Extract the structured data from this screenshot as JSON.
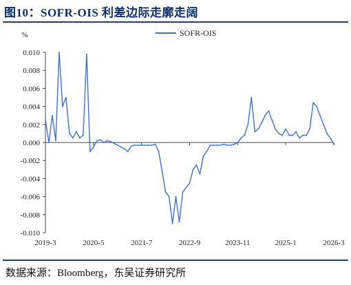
{
  "header": {
    "title": "图10：SOFR-OIS 利差边际走廓走阔"
  },
  "footer": {
    "source": "数据来源：Bloomberg，东吴证券研究所"
  },
  "colors": {
    "series": "#3a6fe0",
    "title": "#0b2f6e",
    "rule": "#1f3d7a",
    "axis": "#444444"
  },
  "chart_data": {
    "type": "line",
    "title": "",
    "ylabel": "%",
    "xlabel": "",
    "ylim": [
      -0.01,
      0.01
    ],
    "yticks": [
      0.01,
      0.008,
      0.006,
      0.004,
      0.002,
      0.0,
      -0.002,
      -0.004,
      -0.006,
      -0.008,
      -0.01
    ],
    "ytick_labels": [
      "0.010",
      "0.008",
      "0.006",
      "0.004",
      "0.002",
      "0.000",
      "-0.002",
      "-0.004",
      "-0.006",
      "-0.008",
      "-0.010"
    ],
    "xlim": [
      "2019-03",
      "2026-03"
    ],
    "xticks": [
      "2019-03",
      "2020-05",
      "2021-07",
      "2022-09",
      "2023-11",
      "2025-01",
      "2026-03"
    ],
    "xtick_labels": [
      "2019-3",
      "2020-5",
      "2021-7",
      "2022-9",
      "2023-11",
      "2025-1",
      "2026-3"
    ],
    "grid": false,
    "legend_position": "top-center",
    "series": [
      {
        "name": "SOFR-OIS",
        "x": [
          "2019-03",
          "2019-04",
          "2019-05",
          "2019-06",
          "2019-07",
          "2019-08",
          "2019-09",
          "2019-10",
          "2019-11",
          "2019-12",
          "2020-01",
          "2020-02",
          "2020-03",
          "2020-04",
          "2020-05",
          "2020-06",
          "2020-07",
          "2020-08",
          "2020-09",
          "2020-10",
          "2020-11",
          "2020-12",
          "2021-01",
          "2021-02",
          "2021-03",
          "2021-04",
          "2021-05",
          "2021-06",
          "2021-07",
          "2021-08",
          "2021-09",
          "2021-10",
          "2021-11",
          "2021-12",
          "2022-01",
          "2022-02",
          "2022-03",
          "2022-04",
          "2022-05",
          "2022-06",
          "2022-07",
          "2022-08",
          "2022-09",
          "2022-10",
          "2022-11",
          "2022-12",
          "2023-01",
          "2023-02",
          "2023-03",
          "2023-04",
          "2023-05",
          "2023-06",
          "2023-07",
          "2023-08",
          "2023-09",
          "2023-10",
          "2023-11",
          "2023-12",
          "2024-01",
          "2024-02",
          "2024-03",
          "2024-04",
          "2024-05",
          "2024-06",
          "2024-07",
          "2024-08",
          "2024-09",
          "2024-10",
          "2024-11",
          "2024-12",
          "2025-01",
          "2025-02",
          "2025-03",
          "2025-04",
          "2025-05",
          "2025-06",
          "2025-07",
          "2025-08",
          "2025-09",
          "2025-10",
          "2025-11",
          "2025-12",
          "2026-01",
          "2026-02",
          "2026-03"
        ],
        "values": [
          0.0025,
          0.0,
          0.003,
          0.0002,
          0.01,
          0.004,
          0.005,
          0.001,
          0.0005,
          0.0012,
          0.0005,
          0.0008,
          0.0098,
          -0.001,
          -0.0005,
          0.0002,
          0.0003,
          0.0,
          0.0002,
          0.0001,
          -0.0001,
          -0.0003,
          -0.0005,
          -0.0007,
          -0.001,
          -0.0004,
          -0.0003,
          -0.0003,
          -0.0003,
          -0.0003,
          -0.0003,
          -0.0003,
          -0.0002,
          -0.001,
          -0.0032,
          -0.0055,
          -0.006,
          -0.009,
          -0.006,
          -0.0088,
          -0.0055,
          -0.005,
          -0.0045,
          -0.003,
          -0.0025,
          -0.0035,
          -0.0015,
          -0.001,
          -0.0003,
          -0.0003,
          -0.0003,
          -0.0003,
          -0.0002,
          -0.0003,
          -0.0003,
          -0.0002,
          0.0,
          0.0005,
          0.0008,
          0.002,
          0.005,
          0.0012,
          0.0015,
          0.0022,
          0.003,
          0.0035,
          0.0025,
          0.0015,
          0.001,
          0.0008,
          0.0015,
          0.0008,
          0.0008,
          0.0012,
          0.0005,
          0.0008,
          0.0008,
          0.0015,
          0.0044,
          0.004,
          0.003,
          0.002,
          0.001,
          0.0005,
          -0.0002
        ]
      }
    ]
  }
}
